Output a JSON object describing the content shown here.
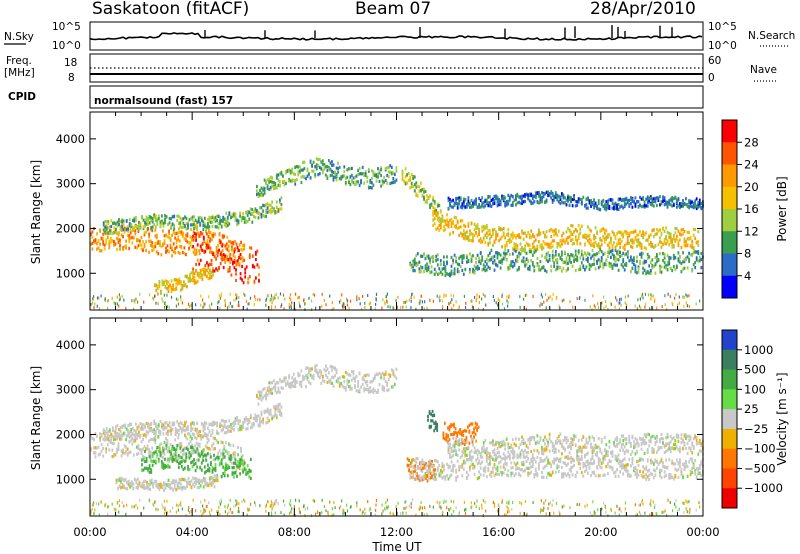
{
  "header": {
    "station": "Saskatoon (fitACF)",
    "beam": "Beam 07",
    "date": "28/Apr/2010"
  },
  "top_panels": {
    "nsky_label": "N.Sky",
    "nsearch_label": "N.Search",
    "nsky_ticks": [
      "10^5",
      "10^0"
    ],
    "nsearch_ticks": [
      "10^5",
      "10^0"
    ],
    "freq_label_line1": "Freq.",
    "freq_label_line2": "[MHz]",
    "freq_ticks": [
      "18",
      "8"
    ],
    "nave_label": "Nave",
    "nave_ticks": [
      "60",
      "0"
    ],
    "cpid_label": "CPID",
    "cpid_text": "normalsound (fast) 157"
  },
  "colors": {
    "frame": "#000000",
    "grid": "#000000"
  },
  "chart_data": [
    {
      "type": "heatmap",
      "name": "power",
      "ylabel": "Slant Range [km]",
      "xlabel": "Time UT",
      "ylim": [
        180,
        4600
      ],
      "xlim": [
        0,
        24
      ],
      "y_ticks": [
        "4000",
        "3000",
        "2000",
        "1000"
      ],
      "colorbar_label": "Power [dB]",
      "colorbar_ticks": [
        "28",
        "24",
        "20",
        "16",
        "12",
        "8",
        "4"
      ],
      "colorbar_colors": [
        "#ff0000",
        "#ff5500",
        "#ff9900",
        "#f5c000",
        "#9fcf40",
        "#3a9e50",
        "#2a6cc8",
        "#0000ff"
      ],
      "bands": [
        {
          "t": [
            0,
            1.5,
            3,
            4.5,
            6.0
          ],
          "r": [
            1750,
            1800,
            1650,
            1700,
            1400
          ],
          "w": 280,
          "v": 22
        },
        {
          "t": [
            0.5,
            2.5,
            4.5,
            6.5,
            7.5
          ],
          "r": [
            2000,
            2150,
            2100,
            2300,
            2550
          ],
          "w": 150,
          "v": 12
        },
        {
          "t": [
            2.5,
            3.5,
            4.0,
            4.8
          ],
          "r": [
            650,
            720,
            900,
            1000
          ],
          "w": 150,
          "v": 18
        },
        {
          "t": [
            4.0,
            5.0,
            5.8,
            6.6
          ],
          "r": [
            1500,
            1450,
            1200,
            1100
          ],
          "w": 420,
          "v": 27
        },
        {
          "t": [
            6.5,
            7.0,
            7.5,
            8.0
          ],
          "r": [
            2800,
            3000,
            3100,
            3200
          ],
          "w": 160,
          "v": 12
        },
        {
          "t": [
            8.0,
            9.0,
            10.0,
            11.0,
            12.0
          ],
          "r": [
            3200,
            3350,
            3200,
            3100,
            3250
          ],
          "w": 220,
          "v": 10
        },
        {
          "t": [
            12.2,
            12.8,
            13.4,
            13.8
          ],
          "r": [
            3200,
            2900,
            2500,
            2250
          ],
          "w": 200,
          "v": 14
        },
        {
          "t": [
            13.4,
            15.0,
            17.0,
            19.0,
            21.0,
            22.5,
            23.8
          ],
          "r": [
            2200,
            1900,
            1700,
            1850,
            1700,
            1800,
            1750
          ],
          "w": 220,
          "v": 19
        },
        {
          "t": [
            12.5,
            14.0,
            16.0,
            18.0,
            20.0,
            22.0,
            24.0
          ],
          "r": [
            1250,
            1150,
            1300,
            1250,
            1300,
            1200,
            1250
          ],
          "w": 230,
          "v": 10
        },
        {
          "t": [
            14.0,
            16.0,
            18.0,
            20.0,
            22.0,
            24.0
          ],
          "r": [
            2550,
            2600,
            2700,
            2500,
            2600,
            2550
          ],
          "w": 120,
          "v": 7
        }
      ]
    },
    {
      "type": "heatmap",
      "name": "velocity",
      "ylabel": "Slant Range [km]",
      "xlabel": "Time UT",
      "ylim": [
        180,
        4600
      ],
      "xlim": [
        0,
        24
      ],
      "y_ticks": [
        "4000",
        "3000",
        "2000",
        "1000"
      ],
      "x_ticks": [
        "00:00",
        "04:00",
        "08:00",
        "12:00",
        "16:00",
        "20:00",
        "00:00"
      ],
      "colorbar_label": "Velocity [m s⁻¹]",
      "colorbar_ticks": [
        "1000",
        "500",
        "100",
        "25",
        "−25",
        "−100",
        "−500",
        "−1000"
      ],
      "colorbar_colors": [
        "#2244cc",
        "#3a8060",
        "#44aa44",
        "#66dd44",
        "#c8c8c8",
        "#f0b000",
        "#ff7700",
        "#ff4400",
        "#ee0000"
      ],
      "bands": [
        {
          "t": [
            0,
            1.5,
            3,
            4.5,
            6.0
          ],
          "r": [
            1750,
            1800,
            1650,
            1700,
            1400
          ],
          "w": 280,
          "v": 0
        },
        {
          "t": [
            0.5,
            2.5,
            4.5,
            6.5,
            7.5
          ],
          "r": [
            2000,
            2150,
            2100,
            2300,
            2550
          ],
          "w": 150,
          "v": 0
        },
        {
          "t": [
            2.0,
            3.0,
            4.0,
            5.0,
            6.3
          ],
          "r": [
            1350,
            1500,
            1450,
            1300,
            1250
          ],
          "w": 260,
          "v": 120
        },
        {
          "t": [
            1.0,
            3.0,
            5.0
          ],
          "r": [
            900,
            850,
            950
          ],
          "w": 120,
          "v": 0
        },
        {
          "t": [
            6.5,
            7.0,
            7.5,
            8.0
          ],
          "r": [
            2800,
            3000,
            3100,
            3200
          ],
          "w": 160,
          "v": 0
        },
        {
          "t": [
            8.0,
            9.0,
            10.0,
            11.0,
            12.0
          ],
          "r": [
            3200,
            3350,
            3200,
            3100,
            3250
          ],
          "w": 220,
          "v": 0
        },
        {
          "t": [
            13.2,
            13.6
          ],
          "r": [
            2350,
            2250
          ],
          "w": 220,
          "v": 700
        },
        {
          "t": [
            13.8,
            14.6,
            15.2
          ],
          "r": [
            2050,
            1950,
            2100
          ],
          "w": 230,
          "v": -450
        },
        {
          "t": [
            12.4,
            13.0,
            13.5
          ],
          "r": [
            1250,
            1150,
            1200
          ],
          "w": 220,
          "v": -300
        },
        {
          "t": [
            14.0,
            16.0,
            18.0,
            20.0,
            22.0,
            24.0
          ],
          "r": [
            1700,
            1650,
            1800,
            1700,
            1800,
            1750
          ],
          "w": 220,
          "v": 0
        },
        {
          "t": [
            12.5,
            14.0,
            16.0,
            18.0,
            20.0,
            22.0,
            24.0
          ],
          "r": [
            1250,
            1150,
            1300,
            1250,
            1300,
            1200,
            1250
          ],
          "w": 230,
          "v": 0
        }
      ]
    }
  ]
}
